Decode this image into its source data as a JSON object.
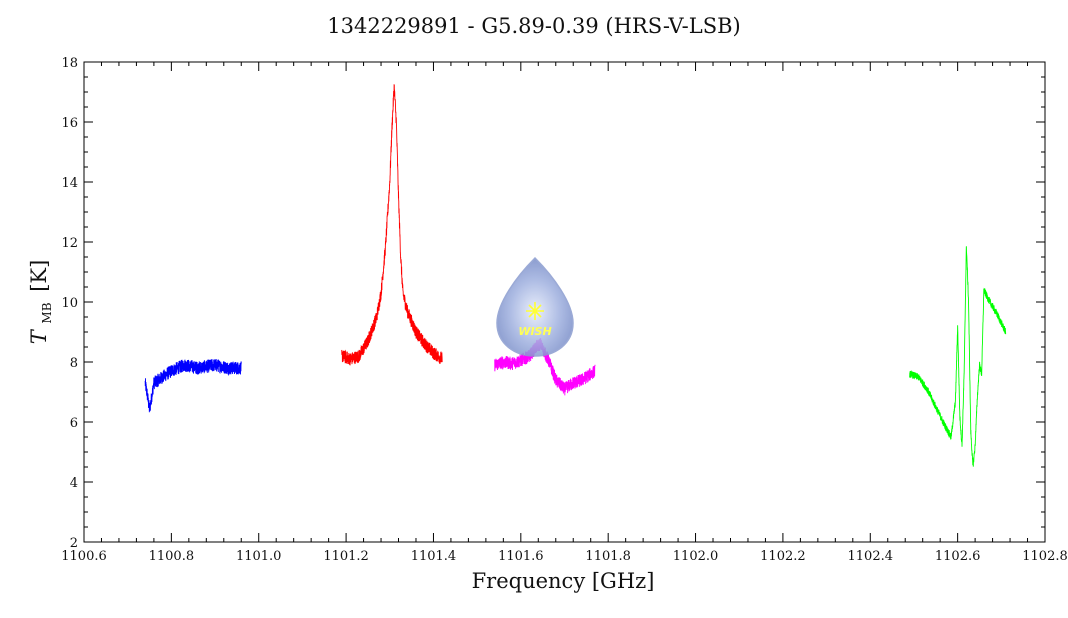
{
  "chart_data": {
    "type": "line",
    "title": "1342229891 - G5.89-0.39 (HRS-V-LSB)",
    "xlabel": "Frequency [GHz]",
    "ylabel": {
      "symbol": "T",
      "subscript": "MB",
      "unit": "[K]"
    },
    "xlim": [
      1100.6,
      1102.8
    ],
    "ylim": [
      2,
      18
    ],
    "xticks": [
      "1100.6",
      "1100.8",
      "1101.0",
      "1101.2",
      "1101.4",
      "1101.6",
      "1101.8",
      "1102.0",
      "1102.2",
      "1102.4",
      "1102.6",
      "1102.8"
    ],
    "yticks": [
      "2",
      "4",
      "6",
      "8",
      "10",
      "12",
      "14",
      "16",
      "18"
    ],
    "grid": false,
    "series": [
      {
        "color": "#0000ff",
        "x": [
          1100.74,
          1100.745,
          1100.75,
          1100.76,
          1100.78,
          1100.8,
          1100.83,
          1100.86,
          1100.9,
          1100.93,
          1100.96
        ],
        "y": [
          7.3,
          6.9,
          6.4,
          7.3,
          7.5,
          7.7,
          7.9,
          7.8,
          7.9,
          7.8,
          7.8
        ]
      },
      {
        "color": "#ff0000",
        "x": [
          1101.19,
          1101.21,
          1101.23,
          1101.25,
          1101.27,
          1101.28,
          1101.29,
          1101.3,
          1101.305,
          1101.31,
          1101.315,
          1101.32,
          1101.325,
          1101.33,
          1101.34,
          1101.36,
          1101.38,
          1101.4,
          1101.42
        ],
        "y": [
          8.2,
          8.1,
          8.2,
          8.7,
          9.5,
          10.3,
          11.8,
          14.0,
          15.8,
          17.2,
          16.0,
          13.5,
          11.5,
          10.3,
          9.7,
          9.0,
          8.6,
          8.3,
          8.1
        ]
      },
      {
        "color": "#ff00ff",
        "x": [
          1101.54,
          1101.56,
          1101.58,
          1101.6,
          1101.62,
          1101.635,
          1101.645,
          1101.655,
          1101.665,
          1101.68,
          1101.7,
          1101.72,
          1101.74,
          1101.77
        ],
        "y": [
          7.9,
          8.0,
          7.95,
          8.05,
          8.2,
          8.5,
          8.6,
          8.3,
          8.0,
          7.4,
          7.1,
          7.3,
          7.4,
          7.7
        ]
      },
      {
        "color": "#00ff00",
        "x": [
          1102.49,
          1102.51,
          1102.53,
          1102.55,
          1102.57,
          1102.585,
          1102.595,
          1102.6,
          1102.605,
          1102.61,
          1102.615,
          1102.62,
          1102.625,
          1102.63,
          1102.635,
          1102.64,
          1102.645,
          1102.65,
          1102.655,
          1102.66,
          1102.67,
          1102.69,
          1102.71
        ],
        "y": [
          7.6,
          7.5,
          7.1,
          6.5,
          5.9,
          5.5,
          6.7,
          9.2,
          6.2,
          5.2,
          7.7,
          11.9,
          10.0,
          5.7,
          4.5,
          5.2,
          6.8,
          7.9,
          7.6,
          10.4,
          10.1,
          9.6,
          9.0
        ]
      }
    ]
  },
  "logo": {
    "text": "WISH",
    "color": "#7f93c9"
  }
}
